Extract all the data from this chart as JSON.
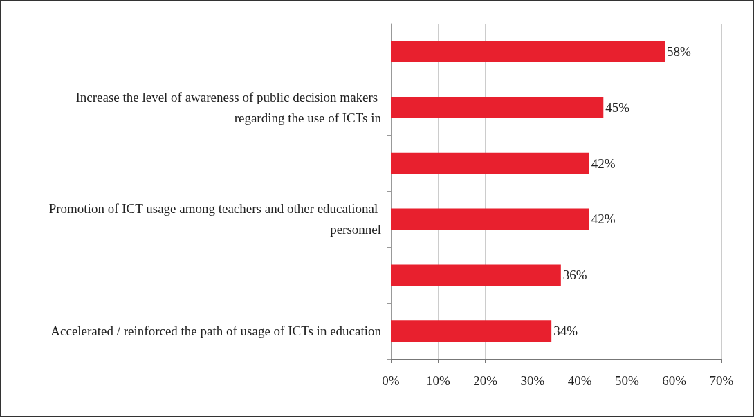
{
  "chart_data": {
    "type": "bar",
    "orientation": "horizontal",
    "categories": [
      null,
      "Increase the level of awareness of public decision makers regarding the use of ICTs in",
      null,
      "Promotion of ICT usage among teachers and other educational personnel",
      null,
      "Accelerated / reinforced the path of usage of ICTs in education"
    ],
    "values": [
      58,
      45,
      42,
      42,
      36,
      34
    ],
    "value_labels": [
      "58%",
      "45%",
      "42%",
      "42%",
      "36%",
      "34%"
    ],
    "color": "#e8202e",
    "xlim": [
      0,
      70
    ],
    "xticks": [
      {
        "value": 0,
        "label": "0%"
      },
      {
        "value": 10,
        "label": "10%"
      },
      {
        "value": 20,
        "label": "20%"
      },
      {
        "value": 30,
        "label": "30%"
      },
      {
        "value": 40,
        "label": "40%"
      },
      {
        "value": 50,
        "label": "50%"
      },
      {
        "value": 60,
        "label": "60%"
      },
      {
        "value": 70,
        "label": "70%"
      }
    ],
    "grid": "x"
  }
}
